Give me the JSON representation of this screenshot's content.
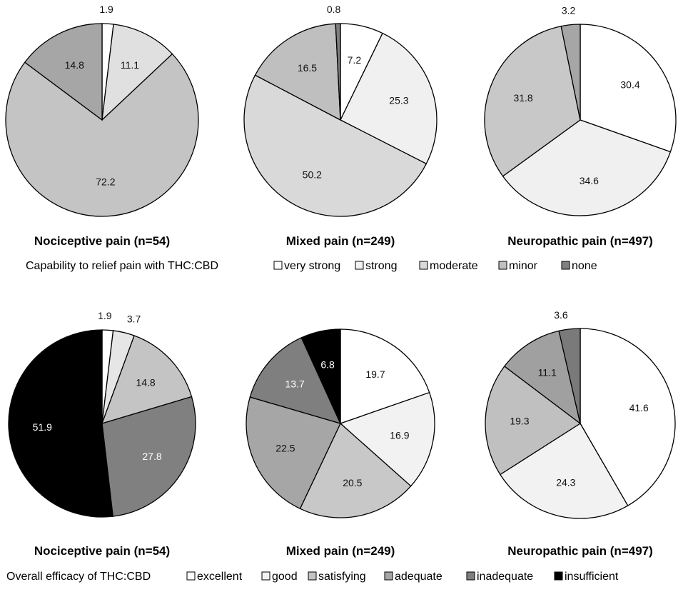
{
  "chart_data": [
    {
      "type": "pie",
      "title": "Nociceptive pain (n=54)",
      "legend_title": "Capability to relief pain with THC:CBD",
      "categories": [
        "very strong",
        "strong",
        "moderate",
        "minor",
        "none"
      ],
      "values": [
        1.9,
        11.1,
        72.2,
        14.8,
        0
      ],
      "value_labels": [
        "1.9",
        "11.1",
        "72.2",
        "14.8",
        ""
      ],
      "colors": [
        "#ffffff",
        "#e0e0e0",
        "#c4c4c4",
        "#a6a6a6",
        "#808080"
      ],
      "label_colors": [
        "#111111",
        "#111111",
        "#111111",
        "#111111",
        "#111111"
      ],
      "start_angle_deg": 0,
      "direction": "clockwise"
    },
    {
      "type": "pie",
      "title": "Mixed pain (n=249)",
      "categories": [
        "very strong",
        "strong",
        "moderate",
        "minor",
        "none"
      ],
      "values": [
        7.2,
        25.3,
        50.2,
        16.5,
        0.8
      ],
      "value_labels": [
        "7.2",
        "25.3",
        "50.2",
        "16.5",
        "0.8"
      ],
      "colors": [
        "#ffffff",
        "#f0f0f0",
        "#d9d9d9",
        "#bfbfbf",
        "#7f7f7f"
      ],
      "label_colors": [
        "#111111",
        "#111111",
        "#111111",
        "#111111",
        "#111111"
      ],
      "start_angle_deg": 0,
      "direction": "clockwise"
    },
    {
      "type": "pie",
      "title": "Neuropathic pain (n=497)",
      "categories": [
        "very strong",
        "strong",
        "moderate",
        "minor",
        "none"
      ],
      "values": [
        30.4,
        34.6,
        0,
        31.8,
        3.2
      ],
      "value_labels": [
        "30.4",
        "34.6",
        "",
        "31.8",
        "3.2"
      ],
      "colors": [
        "#ffffff",
        "#f0f0f0",
        "#d9d9d9",
        "#c8c8c8",
        "#a6a6a6"
      ],
      "label_colors": [
        "#111111",
        "#111111",
        "#111111",
        "#111111",
        "#111111"
      ],
      "start_angle_deg": 0,
      "direction": "clockwise"
    },
    {
      "type": "pie",
      "title": "Nociceptive pain (n=54)",
      "legend_title": "Overall efficacy of THC:CBD",
      "categories": [
        "excellent",
        "good",
        "satisfying",
        "adequate",
        "inadequate",
        "insufficient"
      ],
      "values": [
        1.9,
        3.7,
        14.8,
        27.8,
        0,
        51.9
      ],
      "value_labels": [
        "1.9",
        "3.7",
        "14.8",
        "27.8",
        "",
        "51.9"
      ],
      "colors": [
        "#ffffff",
        "#e6e6e6",
        "#c4c4c4",
        "#808080",
        "#606060",
        "#000000"
      ],
      "label_colors": [
        "#111111",
        "#111111",
        "#111111",
        "#ffffff",
        "#ffffff",
        "#ffffff"
      ],
      "start_angle_deg": 0,
      "direction": "clockwise"
    },
    {
      "type": "pie",
      "title": "Mixed pain (n=249)",
      "categories": [
        "excellent",
        "good",
        "satisfying",
        "adequate",
        "inadequate",
        "insufficient"
      ],
      "values": [
        19.7,
        16.9,
        20.5,
        22.5,
        13.7,
        6.8
      ],
      "value_labels": [
        "19.7",
        "16.9",
        "20.5",
        "22.5",
        "13.7",
        "6.8"
      ],
      "colors": [
        "#ffffff",
        "#f2f2f2",
        "#c8c8c8",
        "#a6a6a6",
        "#7f7f7f",
        "#000000"
      ],
      "label_colors": [
        "#111111",
        "#111111",
        "#111111",
        "#111111",
        "#ffffff",
        "#ffffff"
      ],
      "start_angle_deg": 0,
      "direction": "clockwise"
    },
    {
      "type": "pie",
      "title": "Neuropathic pain (n=497)",
      "categories": [
        "excellent",
        "good",
        "satisfying",
        "adequate",
        "inadequate",
        "insufficient"
      ],
      "values": [
        41.6,
        24.3,
        0,
        19.3,
        11.1,
        3.6
      ],
      "value_labels": [
        "41.6",
        "24.3",
        "",
        "19.3",
        "11.1",
        "3.6"
      ],
      "colors": [
        "#ffffff",
        "#f2f2f2",
        "#d9d9d9",
        "#c0c0c0",
        "#a0a0a0",
        "#7a7a7a"
      ],
      "label_colors": [
        "#111111",
        "#111111",
        "#111111",
        "#111111",
        "#111111",
        "#111111"
      ],
      "start_angle_deg": 0,
      "direction": "clockwise"
    }
  ],
  "legends": [
    {
      "title": "Capability to relief pain with THC:CBD",
      "items": [
        {
          "label": "very strong",
          "color": "#ffffff"
        },
        {
          "label": "strong",
          "color": "#f2f2f2"
        },
        {
          "label": "moderate",
          "color": "#d9d9d9"
        },
        {
          "label": "minor",
          "color": "#c0c0c0"
        },
        {
          "label": "none",
          "color": "#808080"
        }
      ]
    },
    {
      "title": "Overall efficacy of THC:CBD",
      "items": [
        {
          "label": "excellent",
          "color": "#ffffff"
        },
        {
          "label": "good",
          "color": "#f2f2f2"
        },
        {
          "label": "satisfying",
          "color": "#c4c4c4"
        },
        {
          "label": "adequate",
          "color": "#a6a6a6"
        },
        {
          "label": "inadequate",
          "color": "#7f7f7f"
        },
        {
          "label": "insufficient",
          "color": "#000000"
        }
      ]
    }
  ]
}
